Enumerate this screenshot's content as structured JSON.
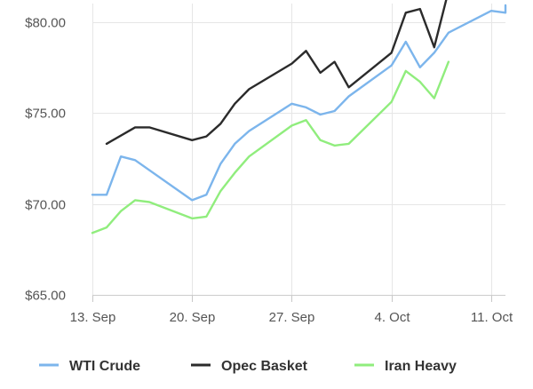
{
  "chart_data": {
    "type": "line",
    "title": "",
    "xlabel": "",
    "ylabel": "",
    "x_ticks": [
      {
        "label": "13. Sep",
        "date": "2021-09-13"
      },
      {
        "label": "20. Sep",
        "date": "2021-09-20"
      },
      {
        "label": "27. Sep",
        "date": "2021-09-27"
      },
      {
        "label": "4. Oct",
        "date": "2021-10-04"
      },
      {
        "label": "11. Oct",
        "date": "2021-10-11"
      }
    ],
    "y_ticks": [
      {
        "label": "$65.00",
        "value": 65
      },
      {
        "label": "$70.00",
        "value": 70
      },
      {
        "label": "$75.00",
        "value": 75
      },
      {
        "label": "$80.00",
        "value": 80
      }
    ],
    "ylim": [
      65,
      81
    ],
    "xlim": [
      "2021-09-13",
      "2021-10-12"
    ],
    "grid": true,
    "legend_position": "bottom",
    "series": [
      {
        "name": "WTI Crude",
        "color": "#7cb5ec",
        "points": [
          {
            "x": "2021-09-13",
            "y": 70.5
          },
          {
            "x": "2021-09-14",
            "y": 70.5
          },
          {
            "x": "2021-09-15",
            "y": 72.6
          },
          {
            "x": "2021-09-16",
            "y": 72.4
          },
          {
            "x": "2021-09-20",
            "y": 70.2
          },
          {
            "x": "2021-09-21",
            "y": 70.5
          },
          {
            "x": "2021-09-22",
            "y": 72.2
          },
          {
            "x": "2021-09-23",
            "y": 73.3
          },
          {
            "x": "2021-09-24",
            "y": 74.0
          },
          {
            "x": "2021-09-27",
            "y": 75.5
          },
          {
            "x": "2021-09-28",
            "y": 75.3
          },
          {
            "x": "2021-09-29",
            "y": 74.9
          },
          {
            "x": "2021-09-30",
            "y": 75.1
          },
          {
            "x": "2021-10-01",
            "y": 75.9
          },
          {
            "x": "2021-10-04",
            "y": 77.6
          },
          {
            "x": "2021-10-05",
            "y": 78.9
          },
          {
            "x": "2021-10-06",
            "y": 77.5
          },
          {
            "x": "2021-10-07",
            "y": 78.3
          },
          {
            "x": "2021-10-08",
            "y": 79.4
          },
          {
            "x": "2021-10-11",
            "y": 80.6
          },
          {
            "x": "2021-10-12",
            "y": 80.5
          },
          {
            "x": "2021-10-12",
            "y": 80.9
          }
        ]
      },
      {
        "name": "Opec Basket",
        "color": "#2b2b2b",
        "points": [
          {
            "x": "2021-09-14",
            "y": 73.3
          },
          {
            "x": "2021-09-16",
            "y": 74.2
          },
          {
            "x": "2021-09-17",
            "y": 74.2
          },
          {
            "x": "2021-09-20",
            "y": 73.5
          },
          {
            "x": "2021-09-21",
            "y": 73.7
          },
          {
            "x": "2021-09-22",
            "y": 74.4
          },
          {
            "x": "2021-09-23",
            "y": 75.5
          },
          {
            "x": "2021-09-24",
            "y": 76.3
          },
          {
            "x": "2021-09-27",
            "y": 77.7
          },
          {
            "x": "2021-09-28",
            "y": 78.4
          },
          {
            "x": "2021-09-29",
            "y": 77.2
          },
          {
            "x": "2021-09-30",
            "y": 77.8
          },
          {
            "x": "2021-10-01",
            "y": 76.4
          },
          {
            "x": "2021-10-04",
            "y": 78.3
          },
          {
            "x": "2021-10-05",
            "y": 80.5
          },
          {
            "x": "2021-10-06",
            "y": 80.7
          },
          {
            "x": "2021-10-07",
            "y": 78.6
          },
          {
            "x": "2021-10-08",
            "y": 81.7
          }
        ]
      },
      {
        "name": "Iran Heavy",
        "color": "#90ed7d",
        "points": [
          {
            "x": "2021-09-13",
            "y": 68.4
          },
          {
            "x": "2021-09-14",
            "y": 68.7
          },
          {
            "x": "2021-09-15",
            "y": 69.6
          },
          {
            "x": "2021-09-16",
            "y": 70.2
          },
          {
            "x": "2021-09-17",
            "y": 70.1
          },
          {
            "x": "2021-09-20",
            "y": 69.2
          },
          {
            "x": "2021-09-21",
            "y": 69.3
          },
          {
            "x": "2021-09-22",
            "y": 70.7
          },
          {
            "x": "2021-09-23",
            "y": 71.7
          },
          {
            "x": "2021-09-24",
            "y": 72.6
          },
          {
            "x": "2021-09-27",
            "y": 74.3
          },
          {
            "x": "2021-09-28",
            "y": 74.6
          },
          {
            "x": "2021-09-29",
            "y": 73.5
          },
          {
            "x": "2021-09-30",
            "y": 73.2
          },
          {
            "x": "2021-10-01",
            "y": 73.3
          },
          {
            "x": "2021-10-04",
            "y": 75.6
          },
          {
            "x": "2021-10-05",
            "y": 77.3
          },
          {
            "x": "2021-10-06",
            "y": 76.7
          },
          {
            "x": "2021-10-07",
            "y": 75.8
          },
          {
            "x": "2021-10-08",
            "y": 77.8
          }
        ]
      }
    ]
  }
}
